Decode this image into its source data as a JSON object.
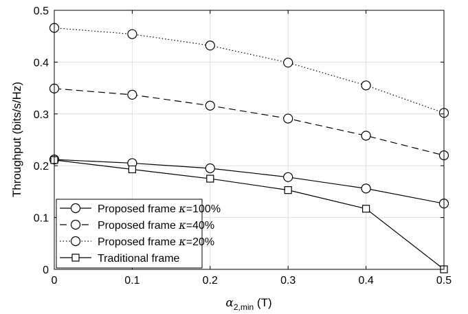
{
  "chart_data": {
    "type": "line",
    "title": "",
    "xlabel": {
      "symbol": "α",
      "subscript": "2,min",
      "unit": " (T)"
    },
    "ylabel": "Throughput (bits/s/Hz)",
    "xlim": [
      0,
      0.5
    ],
    "ylim": [
      0,
      0.5
    ],
    "xticks": [
      "0",
      "0.1",
      "0.2",
      "0.3",
      "0.4",
      "0.5"
    ],
    "yticks": [
      "0",
      "0.1",
      "0.2",
      "0.3",
      "0.4",
      "0.5"
    ],
    "grid": true,
    "legend_position": "bottom-left",
    "x": [
      0,
      0.1,
      0.2,
      0.3,
      0.4,
      0.5
    ],
    "series": [
      {
        "name": "Proposed frame ",
        "kappa_text": "κ=100%",
        "marker": "circle",
        "line_style": "solid",
        "values": [
          0.212,
          0.205,
          0.195,
          0.178,
          0.156,
          0.127
        ]
      },
      {
        "name": "Proposed frame ",
        "kappa_text": "κ=40%",
        "marker": "circle",
        "line_style": "dashed",
        "values": [
          0.349,
          0.337,
          0.316,
          0.291,
          0.258,
          0.22
        ]
      },
      {
        "name": "Proposed frame ",
        "kappa_text": "κ=20%",
        "marker": "circle",
        "line_style": "dotted",
        "values": [
          0.466,
          0.454,
          0.432,
          0.399,
          0.355,
          0.302
        ]
      },
      {
        "name": "Traditional frame",
        "kappa_text": "",
        "marker": "square",
        "line_style": "solid",
        "values": [
          0.211,
          0.193,
          0.175,
          0.153,
          0.117,
          0.0
        ]
      }
    ],
    "colors": {
      "line": "#000000",
      "grid": "#dfdfdf",
      "background": "#ffffff"
    }
  }
}
